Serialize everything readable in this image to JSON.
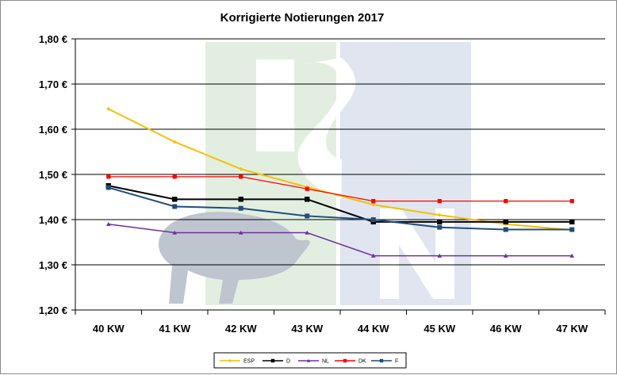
{
  "chart_data": {
    "type": "line",
    "title": "Korrigierte Notierungen 2017",
    "categories": [
      "40 KW",
      "41 KW",
      "42 KW",
      "43 KW",
      "44 KW",
      "45 KW",
      "46 KW",
      "47 KW"
    ],
    "y_ticks": [
      "1,20 €",
      "1,30 €",
      "1,40 €",
      "1,50 €",
      "1,60 €",
      "1,70 €",
      "1,80 €"
    ],
    "ylim": [
      1.2,
      1.8
    ],
    "grid": true,
    "legend_position": "bottom",
    "watermark": "ISN",
    "series": [
      {
        "name": "ESP",
        "color": "#f5c000",
        "marker": "diamond",
        "values": [
          1.645,
          1.572,
          1.512,
          1.472,
          1.433,
          1.41,
          1.39,
          1.377
        ]
      },
      {
        "name": "D",
        "color": "#000000",
        "marker": "square",
        "values": [
          1.475,
          1.445,
          1.445,
          1.445,
          1.395,
          1.395,
          1.395,
          1.395
        ]
      },
      {
        "name": "NL",
        "color": "#7030a0",
        "marker": "triangle",
        "values": [
          1.39,
          1.371,
          1.371,
          1.371,
          1.32,
          1.32,
          1.32,
          1.32
        ]
      },
      {
        "name": "DK",
        "color": "#ff0000",
        "marker": "square",
        "values": [
          1.495,
          1.495,
          1.495,
          1.468,
          1.441,
          1.441,
          1.441,
          1.441
        ]
      },
      {
        "name": "F",
        "color": "#1f4e79",
        "marker": "square",
        "values": [
          1.471,
          1.429,
          1.425,
          1.408,
          1.4,
          1.383,
          1.378,
          1.378
        ]
      }
    ]
  }
}
